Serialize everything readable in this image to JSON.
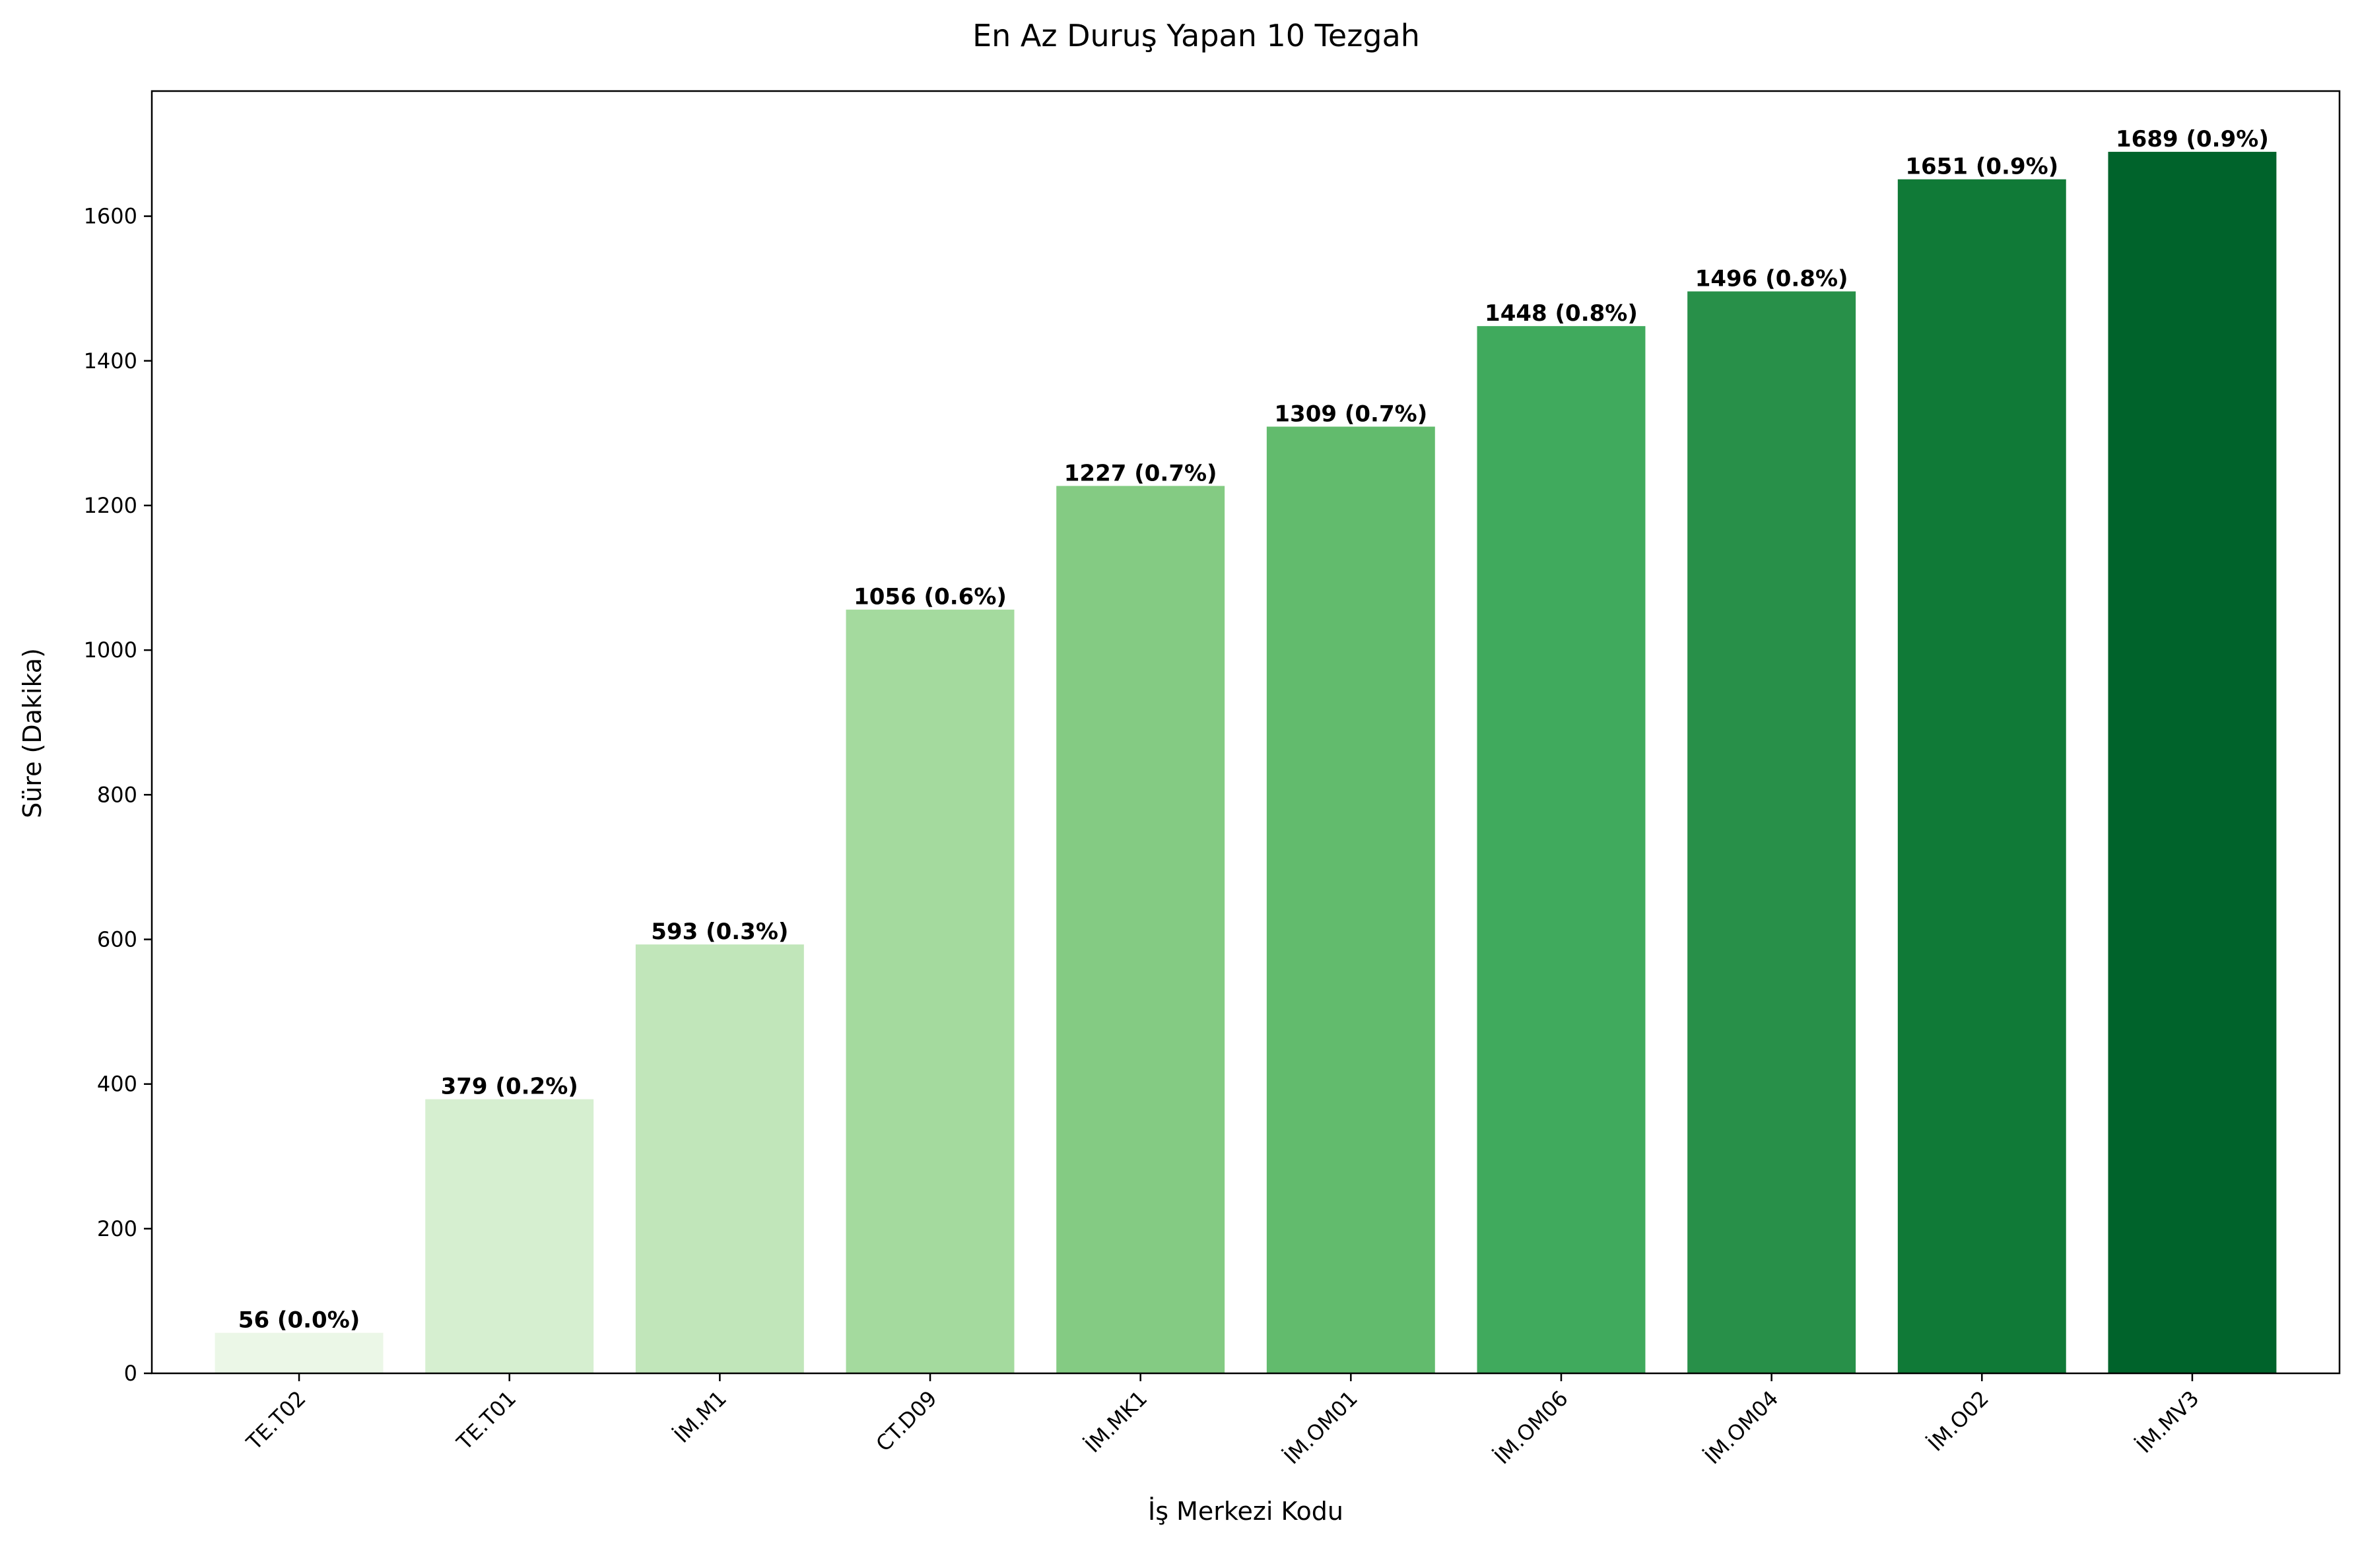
{
  "chart_data": {
    "type": "bar",
    "title": "En Az Duruş Yapan 10 Tezgah",
    "xlabel": "İş Merkezi Kodu",
    "ylabel": "Süre (Dakika)",
    "categories": [
      "TE.T02",
      "TE.T01",
      "İM.M1",
      "CT.D09",
      "İM.MK1",
      "İM.OM01",
      "İM.OM06",
      "İM.OM04",
      "İM.O02",
      "İM.MV3"
    ],
    "values": [
      56,
      379,
      593,
      1056,
      1227,
      1309,
      1448,
      1496,
      1651,
      1689
    ],
    "value_labels": [
      "56 (0.0%)",
      "379 (0.2%)",
      "593 (0.3%)",
      "1056 (0.6%)",
      "1227 (0.7%)",
      "1309 (0.7%)",
      "1448 (0.8%)",
      "1496 (0.8%)",
      "1651 (0.9%)",
      "1689 (0.9%)"
    ],
    "colors": [
      "#ebf7e7",
      "#d6efd0",
      "#c1e6ba",
      "#a4da9e",
      "#84cb83",
      "#62bb6d",
      "#40aa5d",
      "#289049",
      "#107a37",
      "#00632b"
    ],
    "ylim": [
      0,
      1773
    ],
    "yticks": [
      0,
      200,
      400,
      600,
      800,
      1000,
      1200,
      1400,
      1600
    ],
    "grid": false,
    "legend": "none"
  }
}
